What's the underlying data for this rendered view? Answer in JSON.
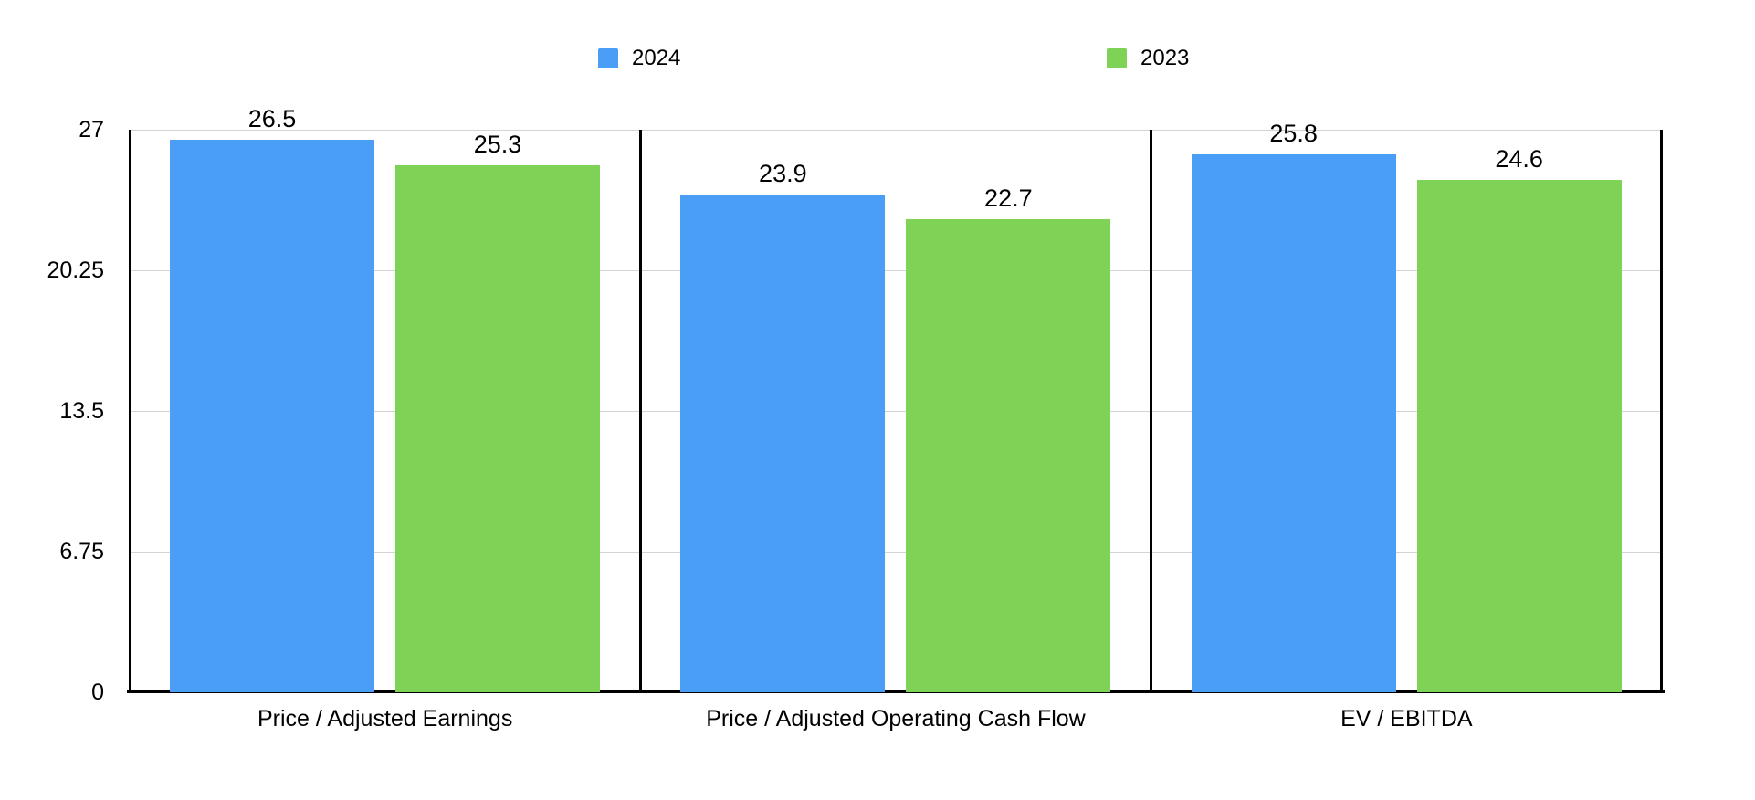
{
  "chart_data": {
    "type": "bar",
    "title": "",
    "categories": [
      "Price / Adjusted Earnings",
      "Price / Adjusted Operating Cash Flow",
      "EV / EBITDA"
    ],
    "series": [
      {
        "name": "2024",
        "color": "#4A9EF5",
        "values": [
          26.5,
          23.9,
          25.8
        ]
      },
      {
        "name": "2023",
        "color": "#7ED256",
        "values": [
          25.3,
          22.7,
          24.6
        ]
      }
    ],
    "value_labels": [
      [
        "26.5",
        "23.9",
        "25.8"
      ],
      [
        "25.3",
        "22.7",
        "24.6"
      ]
    ],
    "y_ticks": [
      "27",
      "20.25",
      "13.5",
      "6.75",
      "0"
    ],
    "ylim": [
      0,
      27
    ],
    "grid": true,
    "legend_position": "top",
    "colors": {
      "gridline": "#d4d4d4",
      "axis": "#000000",
      "text": "#000000",
      "background": "#ffffff"
    }
  }
}
